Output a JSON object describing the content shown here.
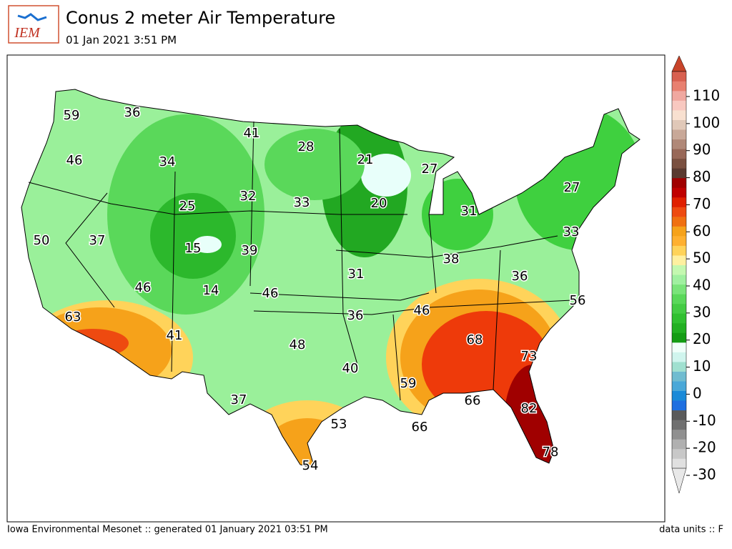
{
  "header": {
    "logo": "IEM",
    "title": "Conus 2 meter Air Temperature",
    "subtitle": "01 Jan 2021 3:51 PM"
  },
  "labels": [
    59,
    36,
    41,
    28,
    21,
    27,
    46,
    34,
    32,
    33,
    20,
    31,
    27,
    25,
    50,
    37,
    15,
    39,
    33,
    38,
    31,
    36,
    46,
    14,
    46,
    56,
    63,
    46,
    36,
    68,
    41,
    48,
    73,
    40,
    59,
    66,
    37,
    82,
    53,
    66,
    78,
    54
  ],
  "colorbar": {
    "ticks": [
      -30,
      -20,
      -10,
      0,
      10,
      20,
      30,
      40,
      50,
      60,
      70,
      80,
      90,
      100,
      110
    ]
  },
  "footer": {
    "left": "Iowa Environmental Mesonet :: generated 01 January 2021 03:51 PM",
    "right": "data units :: F"
  }
}
